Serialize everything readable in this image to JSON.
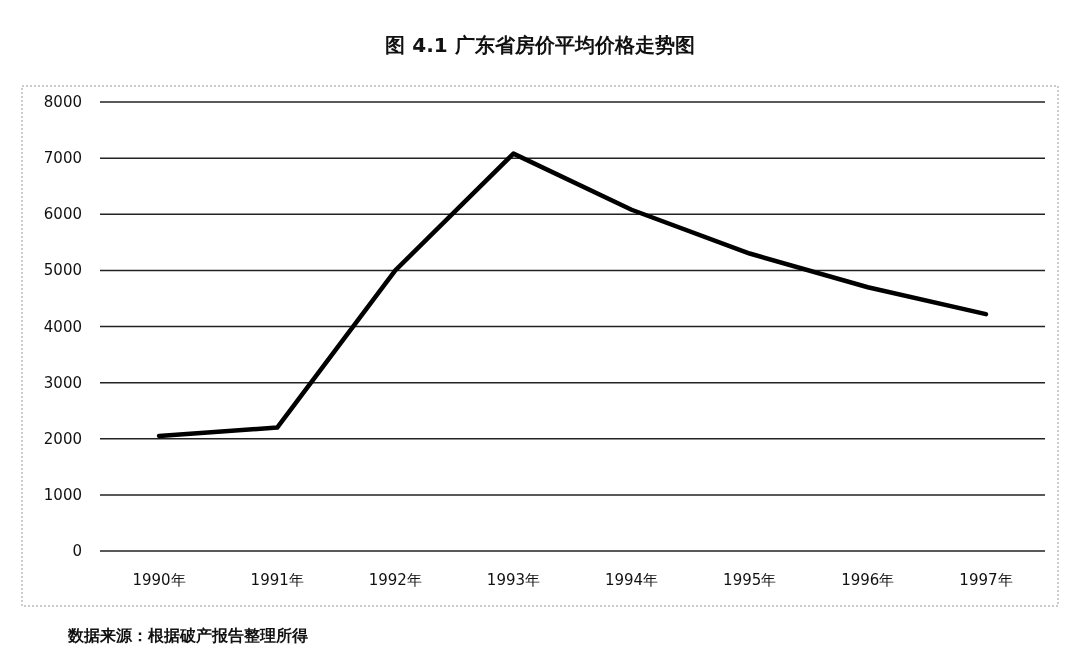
{
  "chart_data": {
    "type": "line",
    "title": "图 4.1 广东省房价平均价格走势图",
    "categories": [
      "1990年",
      "1991年",
      "1992年",
      "1993年",
      "1994年",
      "1995年",
      "1996年",
      "1997年"
    ],
    "values": [
      2050,
      2200,
      5000,
      7080,
      6080,
      5300,
      4700,
      4220
    ],
    "color": "#000000",
    "ylim": [
      0,
      8000
    ],
    "yticks": [
      0,
      1000,
      2000,
      3000,
      4000,
      5000,
      6000,
      7000,
      8000
    ],
    "grid": "y",
    "annotations": [
      "数据来源：根据破产报告整理所得"
    ]
  }
}
